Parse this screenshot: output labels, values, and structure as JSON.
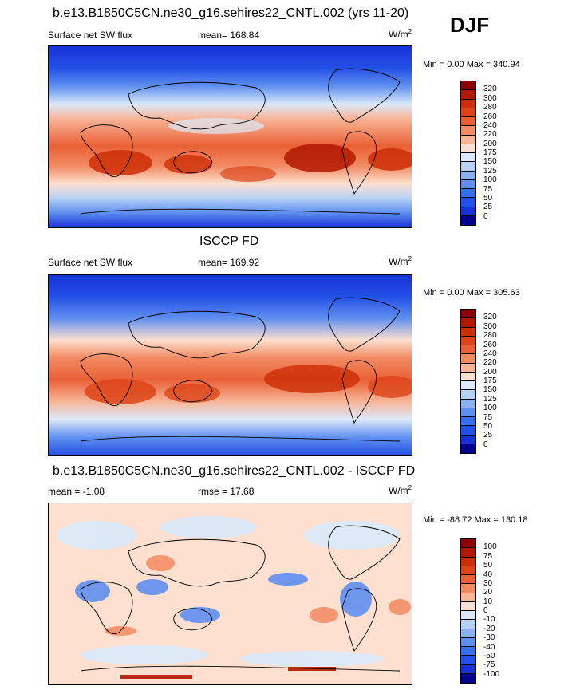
{
  "season": "DJF",
  "panel1": {
    "title": "b.e13.B1850C5CN.ne30_g16.sehires22_CNTL.002 (yrs 11-20)",
    "left": "Surface net SW flux",
    "center": "mean= 168.84",
    "right_base": "W/m",
    "right_sup": "2",
    "minmax": "Min =   0.00 Max = 340.94"
  },
  "panel2": {
    "title": "ISCCP FD",
    "left": "Surface net SW flux",
    "center": "mean= 169.92",
    "right_base": "W/m",
    "right_sup": "2",
    "minmax": "Min =   0.00 Max = 305.63"
  },
  "panel3": {
    "title": "b.e13.B1850C5CN.ne30_g16.sehires22_CNTL.002 - ISCCP FD",
    "left": "mean =  -1.08",
    "center": "rmse =  17.68",
    "right_base": "W/m",
    "right_sup": "2",
    "minmax": "Min = -88.72 Max = 130.18"
  },
  "colorbar_abs": {
    "labels": [
      "320",
      "300",
      "280",
      "260",
      "240",
      "220",
      "200",
      "175",
      "150",
      "125",
      "100",
      "75",
      "50",
      "25",
      "0"
    ],
    "colors": [
      "#8b0000",
      "#b01800",
      "#cc2e06",
      "#dd4418",
      "#ea6036",
      "#f28a62",
      "#f8b598",
      "#fde0cf",
      "#dce9fa",
      "#b5d1f7",
      "#8ab2f2",
      "#5f8ff0",
      "#3a6ef0",
      "#2350e6",
      "#1832d6",
      "#00008c"
    ]
  },
  "colorbar_diff": {
    "labels": [
      "100",
      "75",
      "50",
      "40",
      "30",
      "20",
      "10",
      "0",
      "-10",
      "-20",
      "-30",
      "-40",
      "-50",
      "-75",
      "-100"
    ],
    "colors": [
      "#8b0000",
      "#b01800",
      "#cc2e06",
      "#dd4418",
      "#ea6036",
      "#f28a62",
      "#f8b598",
      "#fde0cf",
      "#dce9fa",
      "#b5d1f7",
      "#8ab2f2",
      "#5f8ff0",
      "#3a6ef0",
      "#2350e6",
      "#1832d6",
      "#00008c"
    ]
  }
}
